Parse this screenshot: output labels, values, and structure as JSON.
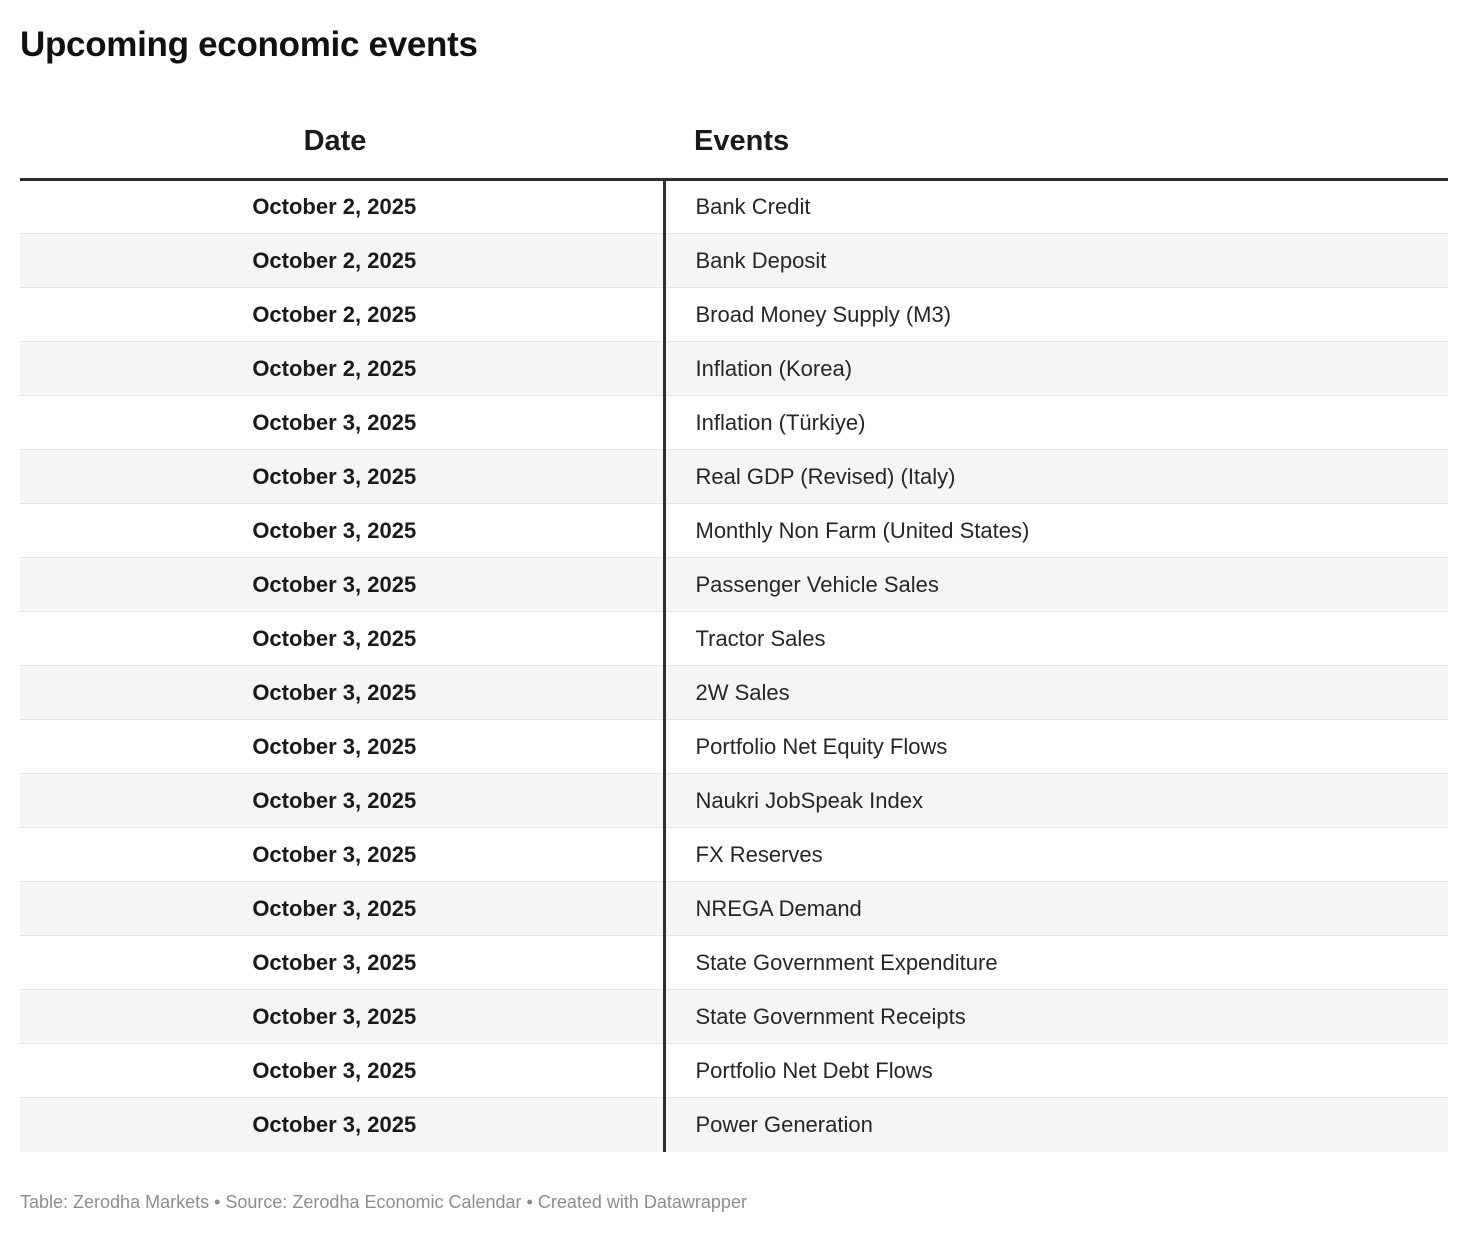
{
  "chart_data": {
    "type": "table",
    "title": "Upcoming economic events",
    "columns": [
      "Date",
      "Events"
    ],
    "rows": [
      [
        "October 2, 2025",
        "Bank Credit"
      ],
      [
        "October 2, 2025",
        "Bank Deposit"
      ],
      [
        "October 2, 2025",
        "Broad Money Supply (M3)"
      ],
      [
        "October 2, 2025",
        "Inflation (Korea)"
      ],
      [
        "October 3, 2025",
        "Inflation (Türkiye)"
      ],
      [
        "October 3, 2025",
        "Real GDP (Revised) (Italy)"
      ],
      [
        "October 3, 2025",
        "Monthly Non Farm (United States)"
      ],
      [
        "October 3, 2025",
        "Passenger Vehicle Sales"
      ],
      [
        "October 3, 2025",
        "Tractor Sales"
      ],
      [
        "October 3, 2025",
        "2W Sales"
      ],
      [
        "October 3, 2025",
        "Portfolio Net Equity Flows"
      ],
      [
        "October 3, 2025",
        "Naukri JobSpeak Index"
      ],
      [
        "October 3, 2025",
        "FX Reserves"
      ],
      [
        "October 3, 2025",
        "NREGA Demand"
      ],
      [
        "October 3, 2025",
        "State Government Expenditure"
      ],
      [
        "October 3, 2025",
        "State Government Receipts"
      ],
      [
        "October 3, 2025",
        "Portfolio Net Debt Flows"
      ],
      [
        "October 3, 2025",
        "Power Generation"
      ]
    ],
    "layout": {
      "date_column_align": "center",
      "events_column_align": "left",
      "striped": true,
      "grid": "horizontal-rules-with-center-divider",
      "legend": "none"
    }
  },
  "footer": {
    "text": "Table: Zerodha Markets • Source: Zerodha Economic Calendar • Created with Datawrapper"
  },
  "colors": {
    "rule": "#2e2e2e",
    "stripe": "#f5f5f5",
    "row-border": "#e3e3e3",
    "footer-text": "#8d8d8d"
  }
}
